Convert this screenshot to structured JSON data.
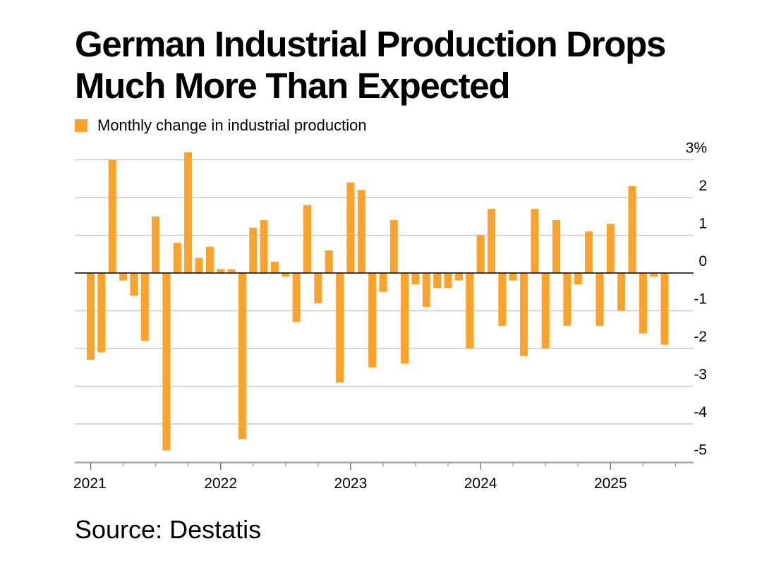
{
  "title": "German Industrial Production Drops Much More Than Expected",
  "source": "Source: Destatis",
  "colors": {
    "bar": "#fda22b",
    "grid": "#cccccc",
    "zero": "#000000",
    "text": "#000000"
  },
  "chart_data": {
    "type": "bar",
    "title": "German Industrial Production Drops Much More Than Expected",
    "legend": {
      "placement": "top-left",
      "entries": [
        "Monthly change in industrial production"
      ]
    },
    "series": [
      {
        "name": "Monthly change in industrial production",
        "x": [
          "2021-01",
          "2021-02",
          "2021-03",
          "2021-04",
          "2021-05",
          "2021-06",
          "2021-07",
          "2021-08",
          "2021-09",
          "2021-10",
          "2021-11",
          "2021-12",
          "2022-01",
          "2022-02",
          "2022-03",
          "2022-04",
          "2022-05",
          "2022-06",
          "2022-07",
          "2022-08",
          "2022-09",
          "2022-10",
          "2022-11",
          "2022-12",
          "2023-01",
          "2023-02",
          "2023-03",
          "2023-04",
          "2023-05",
          "2023-06",
          "2023-07",
          "2023-08",
          "2023-09",
          "2023-10",
          "2023-11",
          "2023-12",
          "2024-01",
          "2024-02",
          "2024-03",
          "2024-04",
          "2024-05",
          "2024-06",
          "2024-07",
          "2024-08",
          "2024-09",
          "2024-10",
          "2024-11",
          "2024-12",
          "2025-01",
          "2025-02",
          "2025-03",
          "2025-04",
          "2025-05",
          "2025-06"
        ],
        "values": [
          -2.3,
          -2.1,
          3.0,
          -0.2,
          -0.6,
          -1.8,
          1.5,
          -4.7,
          0.8,
          3.2,
          0.4,
          0.7,
          0.1,
          0.1,
          -4.4,
          1.2,
          1.4,
          0.3,
          -0.1,
          -1.3,
          1.8,
          -0.8,
          0.6,
          -2.9,
          2.4,
          2.2,
          -2.5,
          -0.5,
          1.4,
          -2.4,
          -0.3,
          -0.9,
          -0.4,
          -0.4,
          -0.2,
          -2.0,
          1.0,
          1.7,
          -1.4,
          -0.2,
          -2.2,
          1.7,
          -2.0,
          1.4,
          -1.4,
          -0.3,
          1.1,
          -1.4,
          1.3,
          -1.0,
          2.3,
          -1.6,
          -0.1,
          -1.9
        ]
      }
    ],
    "xaxis": {
      "ticks": [
        "2021",
        "2022",
        "2023",
        "2024",
        "2025"
      ]
    },
    "yaxis": {
      "range": [
        -5.3,
        3.3
      ],
      "ticks": [
        "3%",
        "2",
        "1",
        "0",
        "-1",
        "-2",
        "-3",
        "-4",
        "-5"
      ],
      "tick_values": [
        3,
        2,
        1,
        0,
        -1,
        -2,
        -3,
        -4,
        -5
      ],
      "position": "right"
    },
    "grid": true
  }
}
